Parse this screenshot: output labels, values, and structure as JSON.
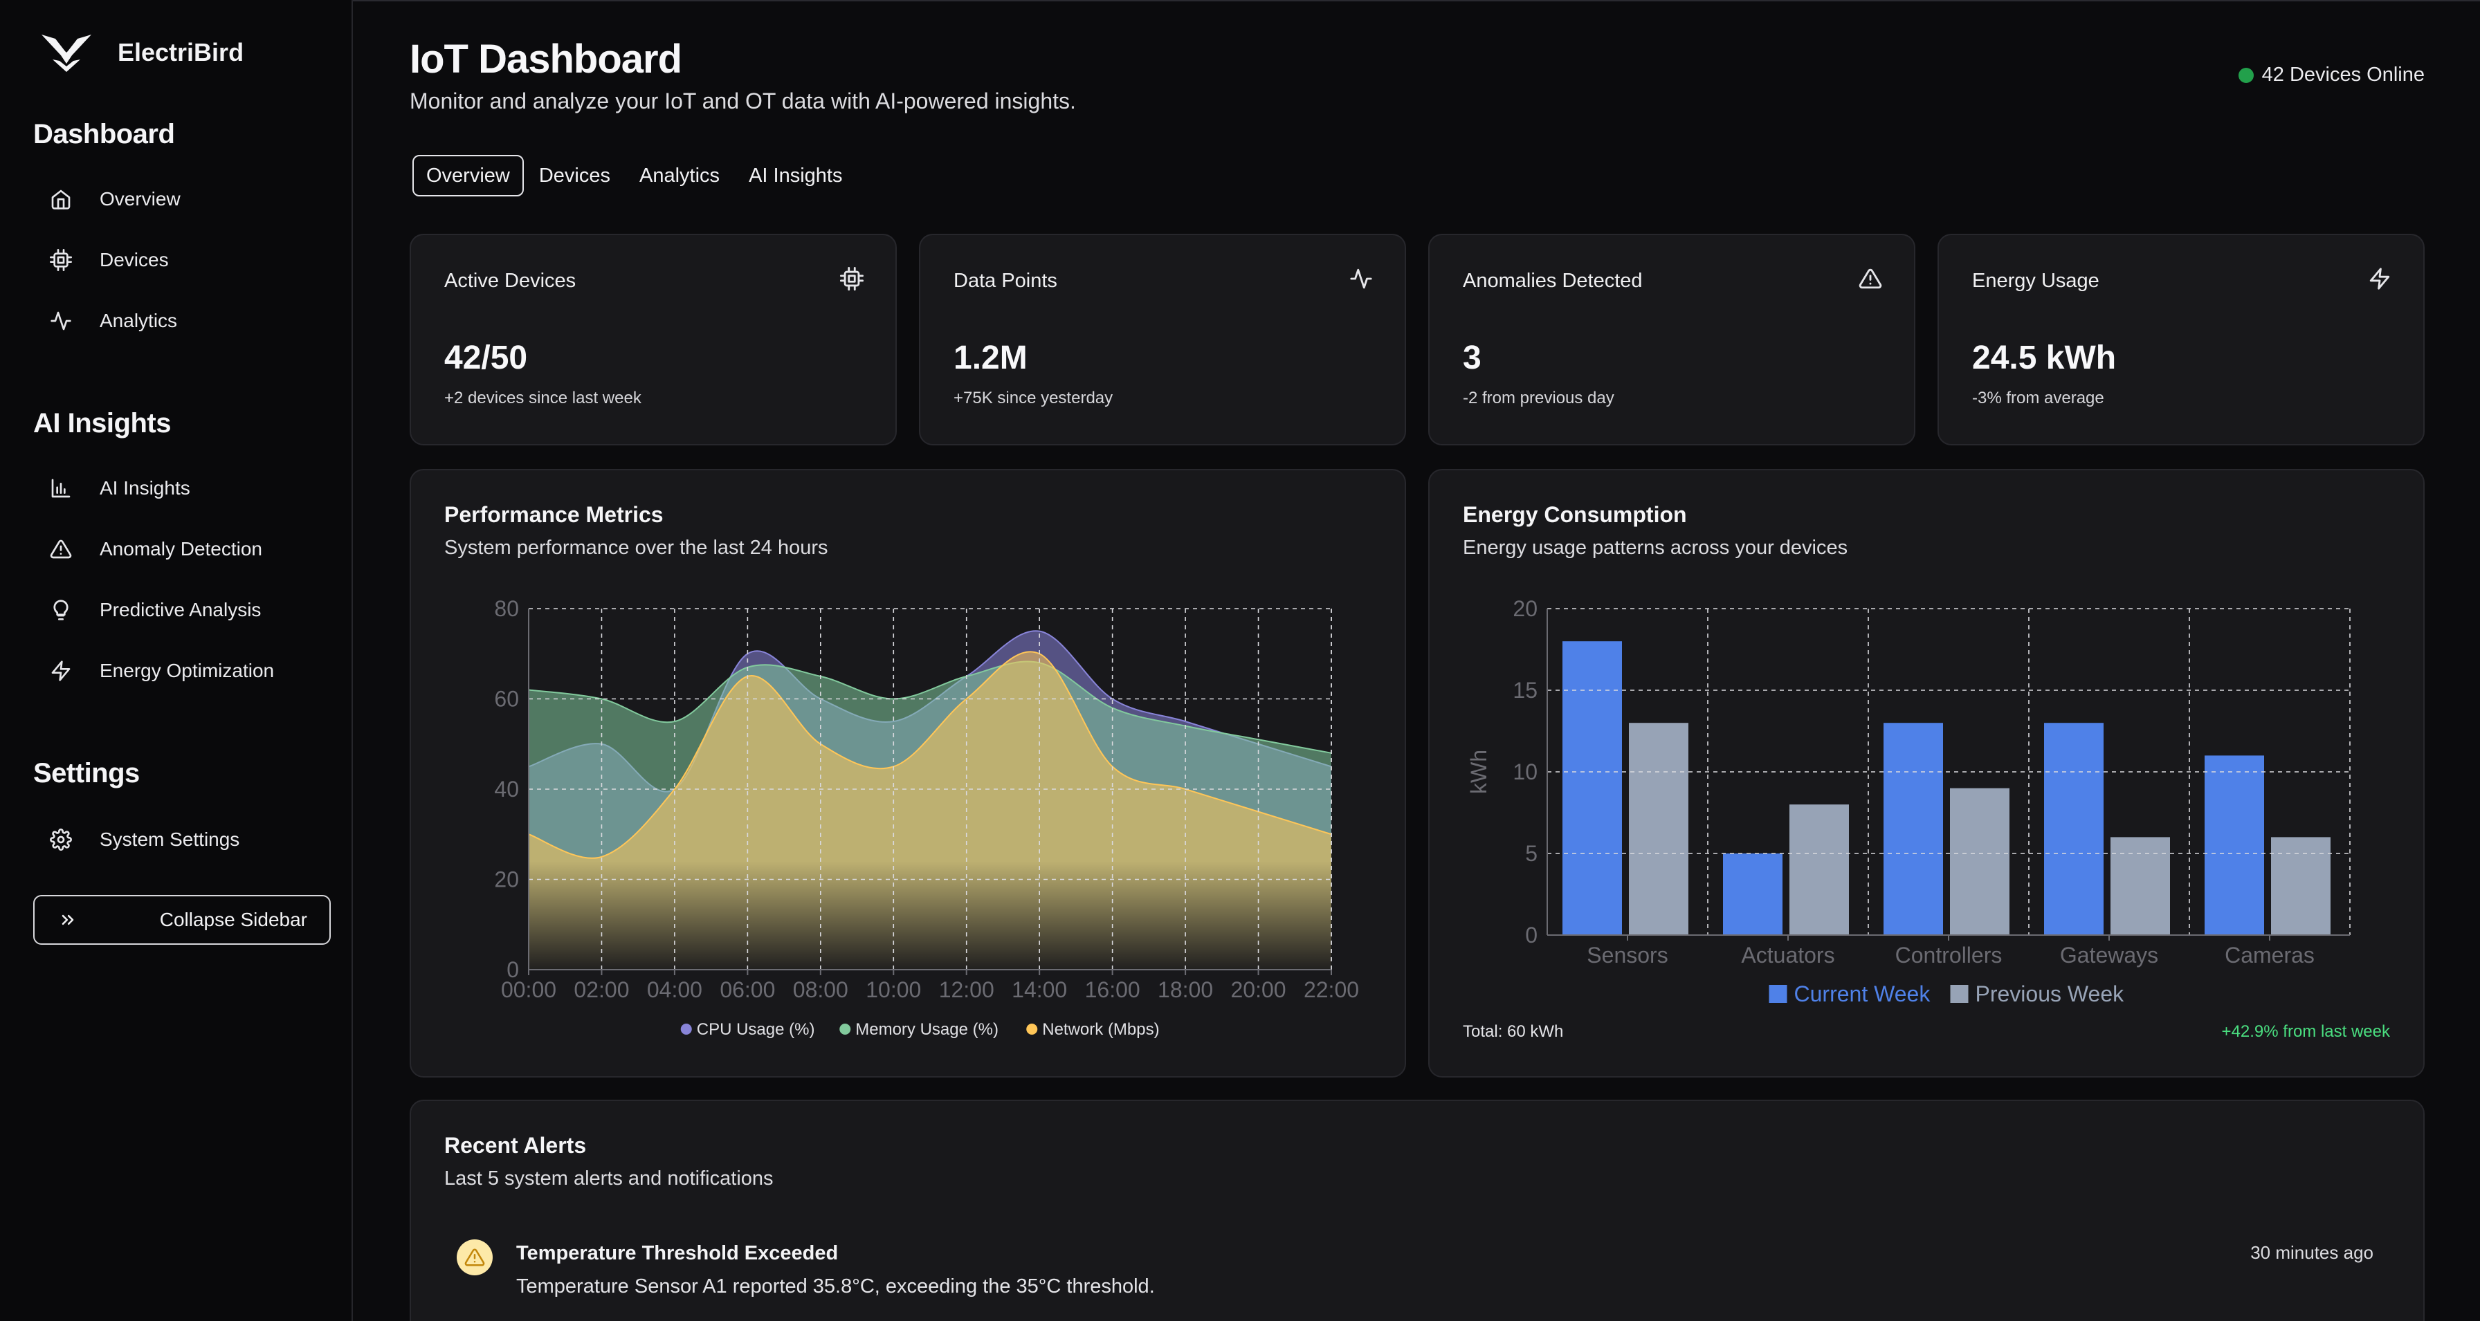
{
  "app": {
    "name": "ElectriBird"
  },
  "sidebar": {
    "sections": [
      {
        "title": "Dashboard",
        "items": [
          {
            "label": "Overview",
            "icon": "home-icon"
          },
          {
            "label": "Devices",
            "icon": "cpu-icon"
          },
          {
            "label": "Analytics",
            "icon": "activity-icon"
          }
        ]
      },
      {
        "title": "AI Insights",
        "items": [
          {
            "label": "AI Insights",
            "icon": "bar-chart-icon"
          },
          {
            "label": "Anomaly Detection",
            "icon": "alert-triangle-icon"
          },
          {
            "label": "Predictive Analysis",
            "icon": "lightbulb-icon"
          },
          {
            "label": "Energy Optimization",
            "icon": "zap-icon"
          }
        ]
      },
      {
        "title": "Settings",
        "items": [
          {
            "label": "System Settings",
            "icon": "gear-icon"
          }
        ]
      }
    ],
    "collapse_label": "Collapse Sidebar"
  },
  "header": {
    "title": "IoT Dashboard",
    "subtitle": "Monitor and analyze your IoT and OT data with AI-powered insights.",
    "status": "42 Devices Online",
    "status_color": "#22a04b"
  },
  "tabs": [
    {
      "label": "Overview",
      "active": true
    },
    {
      "label": "Devices",
      "active": false
    },
    {
      "label": "Analytics",
      "active": false
    },
    {
      "label": "AI Insights",
      "active": false
    }
  ],
  "stats": [
    {
      "label": "Active Devices",
      "value": "42/50",
      "sub": "+2 devices since last week",
      "icon": "cpu-icon"
    },
    {
      "label": "Data Points",
      "value": "1.2M",
      "sub": "+75K since yesterday",
      "icon": "activity-icon"
    },
    {
      "label": "Anomalies Detected",
      "value": "3",
      "sub": "-2 from previous day",
      "icon": "alert-triangle-icon"
    },
    {
      "label": "Energy Usage",
      "value": "24.5 kWh",
      "sub": "-3% from average",
      "icon": "zap-icon"
    }
  ],
  "performance": {
    "title": "Performance Metrics",
    "description": "System performance over the last 24 hours"
  },
  "energy": {
    "title": "Energy Consumption",
    "description": "Energy usage patterns across your devices",
    "total": "Total: 60 kWh",
    "change": "+42.9% from last week",
    "change_color": "#4ade80"
  },
  "alerts": {
    "title": "Recent Alerts",
    "description": "Last 5 system alerts and notifications",
    "items": [
      {
        "title": "Temperature Threshold Exceeded",
        "message": "Temperature Sensor A1 reported 35.8°C, exceeding the 35°C threshold.",
        "time": "30 minutes ago",
        "icon": "alert-triangle-icon"
      }
    ]
  },
  "chart_data": [
    {
      "type": "area",
      "x": [
        "00:00",
        "02:00",
        "04:00",
        "06:00",
        "08:00",
        "10:00",
        "12:00",
        "14:00",
        "16:00",
        "18:00",
        "20:00",
        "22:00"
      ],
      "series": [
        {
          "name": "CPU Usage (%)",
          "color": "#8884d8",
          "values": [
            45,
            50,
            40,
            70,
            60,
            55,
            65,
            75,
            60,
            55,
            50,
            45
          ]
        },
        {
          "name": "Memory Usage (%)",
          "color": "#82ca9d",
          "values": [
            62,
            60,
            55,
            67,
            65,
            60,
            65,
            68,
            58,
            54,
            51,
            48
          ]
        },
        {
          "name": "Network (Mbps)",
          "color": "#ffc658",
          "values": [
            30,
            25,
            40,
            65,
            50,
            45,
            60,
            70,
            45,
            40,
            35,
            30
          ]
        }
      ],
      "ylim": [
        0,
        80
      ],
      "yticks": [
        0,
        20,
        40,
        60,
        80
      ],
      "grid": true,
      "legend": "bottom"
    },
    {
      "type": "bar",
      "categories": [
        "Sensors",
        "Actuators",
        "Controllers",
        "Gateways",
        "Cameras"
      ],
      "series": [
        {
          "name": "Current Week",
          "color": "#4f81e8",
          "values": [
            18,
            5,
            13,
            13,
            11
          ]
        },
        {
          "name": "Previous Week",
          "color": "#97a3b6",
          "values": [
            13,
            8,
            9,
            6,
            6
          ]
        }
      ],
      "ylabel": "kWh",
      "ylim": [
        0,
        20
      ],
      "yticks": [
        0,
        5,
        10,
        15,
        20
      ],
      "grid": true,
      "legend": "bottom"
    }
  ]
}
